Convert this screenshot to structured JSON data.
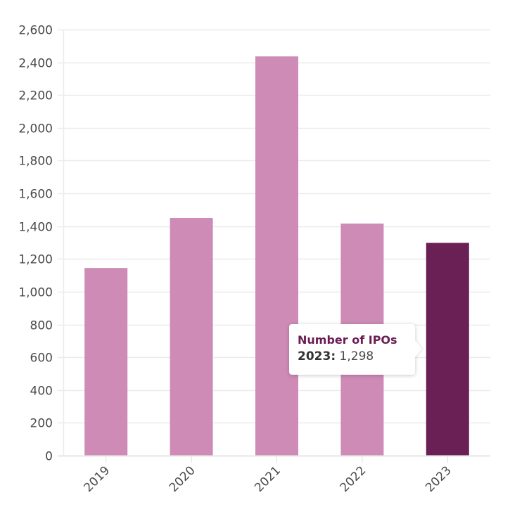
{
  "chart_data": {
    "type": "bar",
    "title": "",
    "xlabel": "",
    "ylabel": "",
    "categories": [
      "2019",
      "2020",
      "2021",
      "2022",
      "2023"
    ],
    "series": [
      {
        "name": "Number of IPOs",
        "values": [
          1145,
          1450,
          2436,
          1416,
          1298
        ]
      }
    ],
    "ylim": [
      0,
      2600
    ],
    "yticks": [
      0,
      200,
      400,
      600,
      800,
      1000,
      1200,
      1400,
      1600,
      1800,
      2000,
      2200,
      2400,
      2600
    ],
    "ytick_labels": [
      "0",
      "200",
      "400",
      "600",
      "800",
      "1,000",
      "1,200",
      "1,400",
      "1,600",
      "1,800",
      "2,000",
      "2,200",
      "2,400",
      "2,600"
    ],
    "grid": true,
    "legend": "none",
    "highlighted_index": 4,
    "colors": {
      "bar": "#cd8bb6",
      "highlight": "#6a1f55",
      "grid": "#ebebeb"
    }
  },
  "tooltip": {
    "title": "Number of IPOs",
    "key": "2023:",
    "value": "1,298"
  }
}
